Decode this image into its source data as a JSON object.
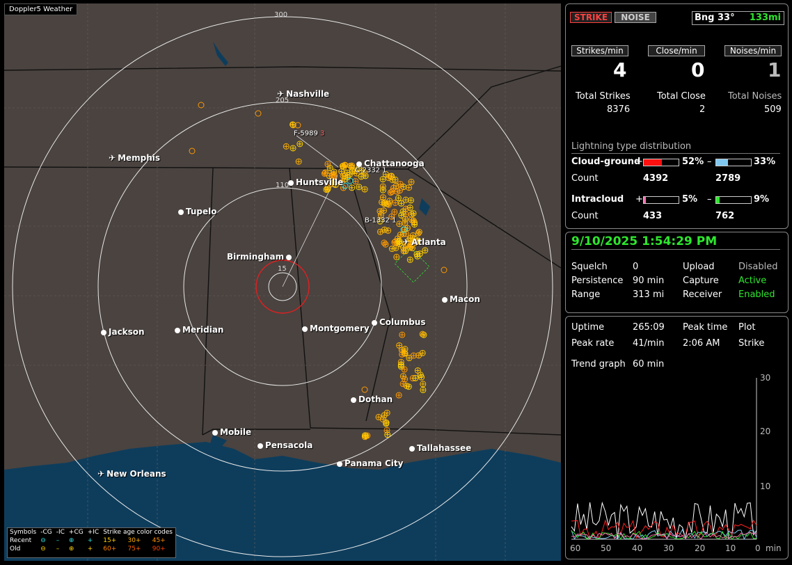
{
  "app_title": "Doppler5 Weather",
  "map": {
    "range_labels": {
      "r300": "300",
      "r205": "205",
      "r110": "110",
      "r15": "15"
    },
    "cities": {
      "nashville": "Nashville",
      "memphis": "Memphis",
      "chattanooga": "Chattanooga",
      "huntsville": "Huntsville",
      "tupelo": "Tupelo",
      "atlanta": "Atlanta",
      "birmingham": "Birmingham",
      "macon": "Macon",
      "jackson": "Jackson",
      "meridian": "Meridian",
      "montgomery": "Montgomery",
      "columbus": "Columbus",
      "dothan": "Dothan",
      "mobile": "Mobile",
      "pensacola": "Pensacola",
      "tallahassee": "Tallahassee",
      "panama_city": "Panama City",
      "new_orleans": "New Orleans"
    },
    "cell_labels": {
      "f": "F-5989",
      "f_num": "3",
      "c": "C-2332",
      "c_num": "1",
      "b": "B-1332",
      "b_num": "1"
    },
    "colors": {
      "land": "#4a4340",
      "water": "#0e3d5c",
      "rings": "#e8e8e8",
      "center_ring": "#e02020",
      "strike_orange": "#ff9900",
      "strike_yellow": "#ffd000",
      "recent_cyan": "#30e0e0"
    }
  },
  "legend": {
    "symbols": "Symbols",
    "neg_cg": "-CG",
    "neg_ic": "-IC",
    "pos_cg": "+CG",
    "pos_ic": "+IC",
    "age_codes": "Strike age color codes",
    "recent": "Recent",
    "old": "Old",
    "age_15": "15+",
    "age_30": "30+",
    "age_45": "45+",
    "age_60": "60+",
    "age_75": "75+",
    "age_90": "90+"
  },
  "stats": {
    "strike_btn": "STRIKE",
    "noise_btn": "NOISE",
    "bearing": "Bng 33°",
    "distance": "133mi",
    "strikes_min_label": "Strikes/min",
    "close_min_label": "Close/min",
    "noises_min_label": "Noises/min",
    "strikes_min": "4",
    "close_min": "0",
    "noises_min": "1",
    "total_strikes_label": "Total Strikes",
    "total_close_label": "Total Close",
    "total_noises_label": "Total Noises",
    "total_strikes": "8376",
    "total_close": "2",
    "total_noises": "509",
    "dist_title": "Lightning type distribution",
    "cg_label": "Cloud-ground",
    "ic_label": "Intracloud",
    "count_label": "Count",
    "plus": "+",
    "minus": "–",
    "cg_pos_pct": "52%",
    "cg_neg_pct": "33%",
    "cg_pos_count": "4392",
    "cg_neg_count": "2789",
    "ic_pos_pct": "5%",
    "ic_neg_pct": "9%",
    "ic_pos_count": "433",
    "ic_neg_count": "762"
  },
  "status": {
    "datetime": "9/10/2025 1:54:29 PM",
    "squelch_label": "Squelch",
    "squelch": "0",
    "persistence_label": "Persistence",
    "persistence": "90 min",
    "range_label": "Range",
    "range": "313 mi",
    "upload_label": "Upload",
    "upload": "Disabled",
    "capture_label": "Capture",
    "capture": "Active",
    "receiver_label": "Receiver",
    "receiver": "Enabled"
  },
  "trend": {
    "uptime_label": "Uptime",
    "uptime": "265:09",
    "peak_time_label": "Peak time",
    "plot_label": "Plot",
    "peak_rate_label": "Peak rate",
    "peak_rate": "41/min",
    "peak_time": "2:06 AM",
    "plot": "Strike",
    "trend_label": "Trend graph",
    "trend_span": "60 min",
    "y_ticks": [
      "30",
      "20",
      "10"
    ],
    "x_ticks": [
      "60",
      "50",
      "40",
      "30",
      "20",
      "10",
      "0"
    ],
    "x_unit": "min"
  }
}
